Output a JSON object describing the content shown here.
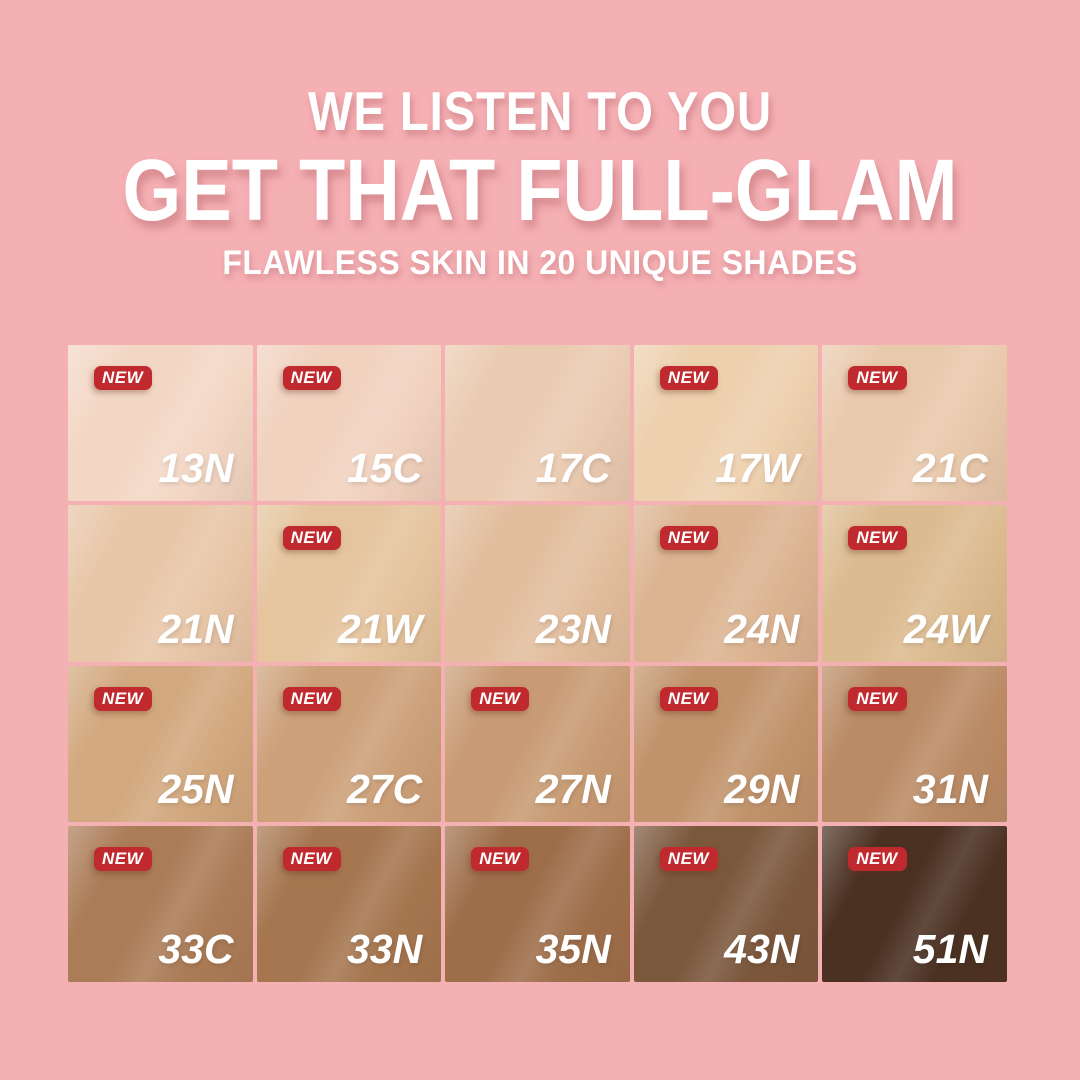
{
  "page": {
    "background": "#F5B0B4"
  },
  "header": {
    "line1": "WE LISTEN TO YOU",
    "line2": "GET THAT FULL-GLAM",
    "line3": "FLAWLESS SKIN IN 20 UNIQUE SHADES",
    "text_color": "#FFFFFF"
  },
  "badge": {
    "label": "NEW",
    "bg": "#C0292D",
    "text_color": "#FFFFFF"
  },
  "shade_grid": {
    "rows": 4,
    "cols": 5,
    "cells": [
      {
        "shade": "13N",
        "color": "#F3D7C5",
        "new": true
      },
      {
        "shade": "15C",
        "color": "#F1D2BF",
        "new": true
      },
      {
        "shade": "17C",
        "color": "#EACBB1",
        "new": false
      },
      {
        "shade": "17W",
        "color": "#EDD0AE",
        "new": true
      },
      {
        "shade": "21C",
        "color": "#E9C9AC",
        "new": true
      },
      {
        "shade": "21N",
        "color": "#E8C6A8",
        "new": false
      },
      {
        "shade": "21W",
        "color": "#E5C49E",
        "new": true
      },
      {
        "shade": "23N",
        "color": "#E2BE9E",
        "new": false
      },
      {
        "shade": "24N",
        "color": "#DCB492",
        "new": true
      },
      {
        "shade": "24W",
        "color": "#DCBB90",
        "new": true
      },
      {
        "shade": "25N",
        "color": "#D2A87E",
        "new": true
      },
      {
        "shade": "27C",
        "color": "#CCA079",
        "new": true
      },
      {
        "shade": "27N",
        "color": "#C89B74",
        "new": true
      },
      {
        "shade": "29N",
        "color": "#C1936B",
        "new": true
      },
      {
        "shade": "31N",
        "color": "#BA8B65",
        "new": true
      },
      {
        "shade": "33C",
        "color": "#AB7C57",
        "new": true
      },
      {
        "shade": "33N",
        "color": "#A5764F",
        "new": true
      },
      {
        "shade": "35N",
        "color": "#9E6E4A",
        "new": true
      },
      {
        "shade": "43N",
        "color": "#7B573C",
        "new": true
      },
      {
        "shade": "51N",
        "color": "#4B3122",
        "new": true
      }
    ]
  }
}
